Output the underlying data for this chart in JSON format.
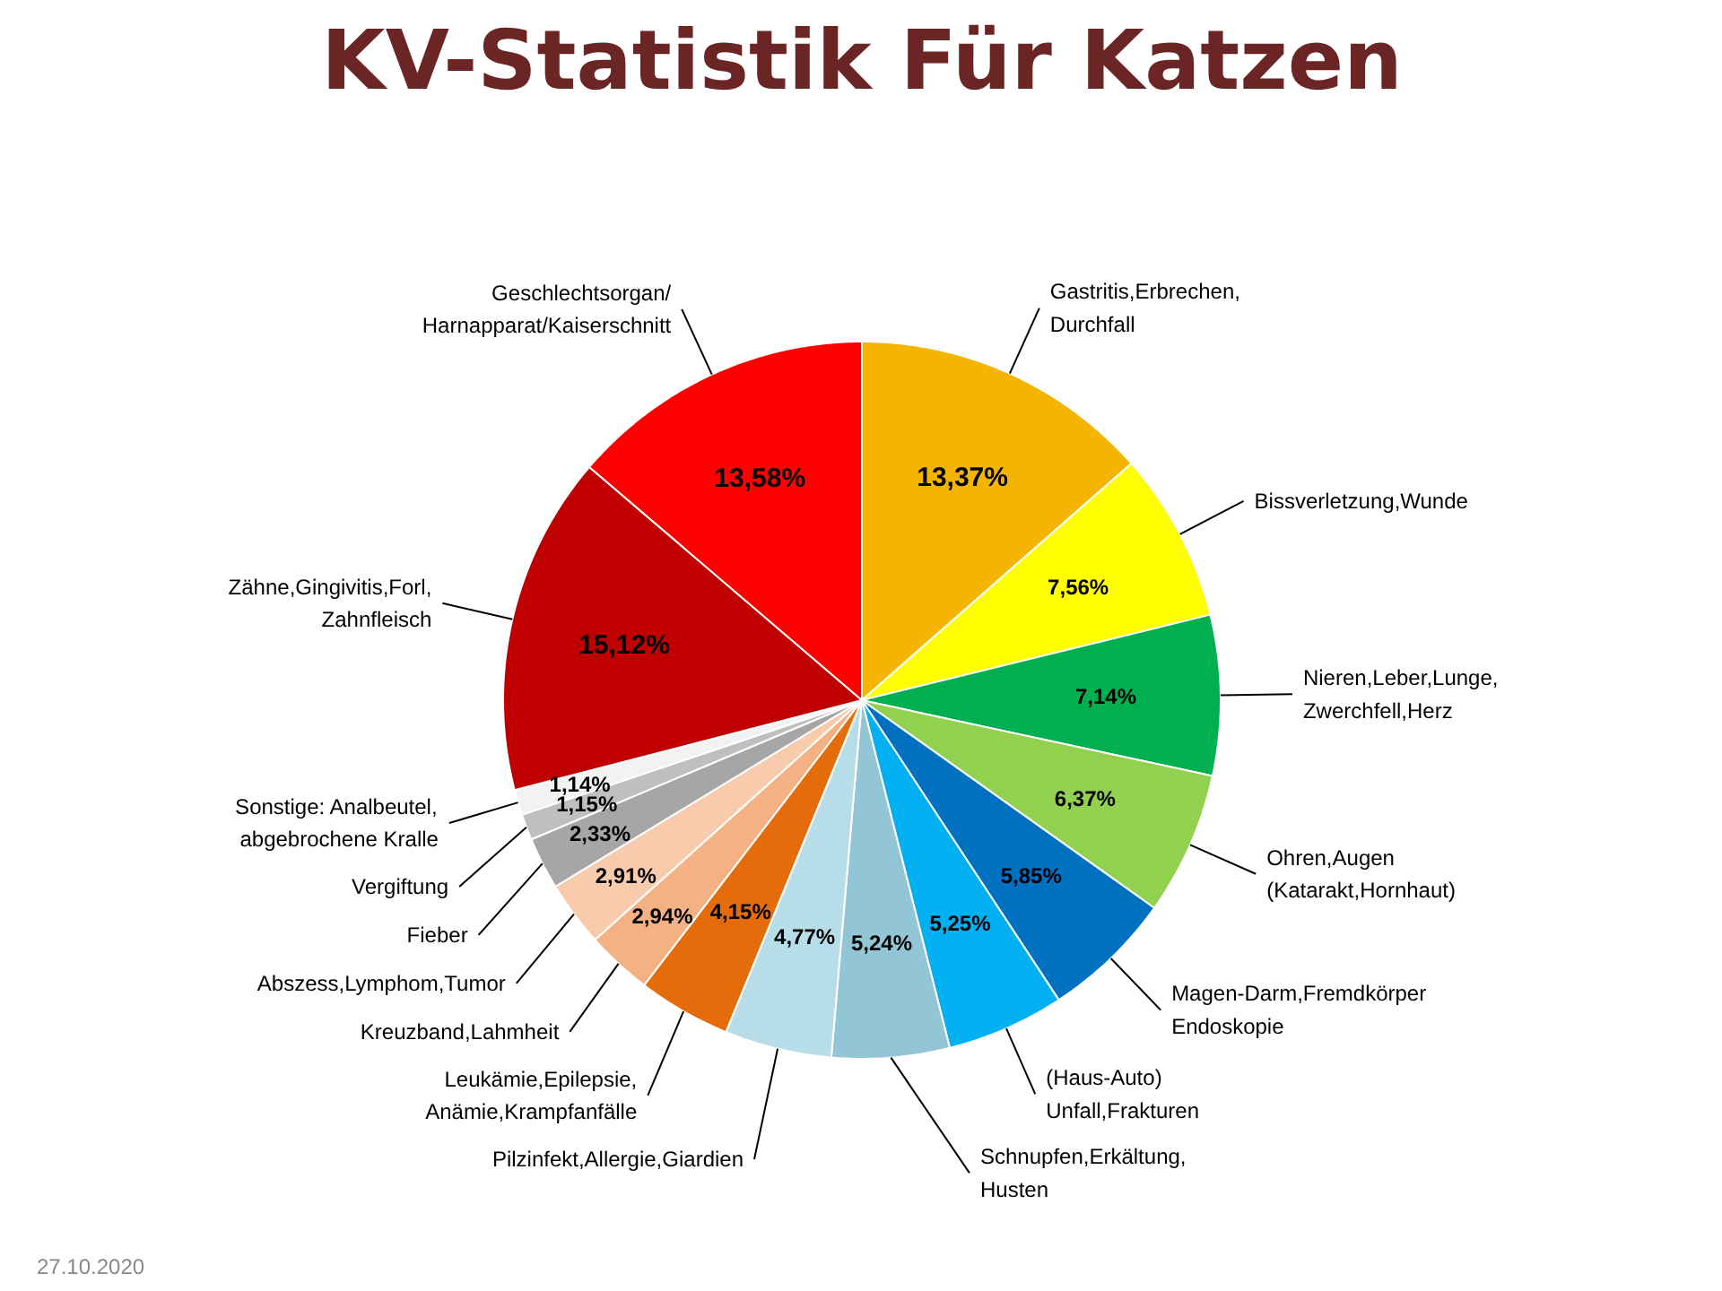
{
  "chart_data": {
    "type": "pie",
    "title": "KV-Statistik Für Katzen",
    "categories": [
      "Gastritis,Erbrechen,\nDurchfall",
      "Bissverletzung,Wunde",
      "Nieren,Leber,Lunge,\nZwerchfell,Herz",
      "Ohren,Augen\n(Katarakt,Hornhaut)",
      "Magen-Darm,Fremdkörper\nEndoskopie",
      "(Haus-Auto)\nUnfall,Frakturen",
      "Schnupfen,Erkältung,\nHusten",
      "Pilzinfekt,Allergie,Giardien",
      "Leukämie,Epilepsie,\nAnämie,Krampfanfälle",
      "Kreuzband,Lahmheit",
      "Abszess,Lymphom,Tumor",
      "Fieber",
      "Vergiftung",
      "Sonstige: Analbeutel,\nabgebrochene Kralle",
      "Zähne,Gingivitis,Forl,\nZahnfleisch",
      "Geschlechtsorgan/\nHarnapparat/Kaiserschnitt"
    ],
    "values": [
      13.37,
      7.56,
      7.14,
      6.37,
      5.85,
      5.25,
      5.24,
      4.77,
      4.15,
      2.94,
      2.91,
      2.33,
      1.15,
      1.14,
      15.12,
      13.58
    ],
    "value_labels": [
      "13,37%",
      "7,56%",
      "7,14%",
      "6,37%",
      "5,85%",
      "5,25%",
      "5,24%",
      "4,77%",
      "4,15%",
      "2,94%",
      "2,91%",
      "2,33%",
      "1,15%",
      "1,14%",
      "15,12%",
      "13,58%"
    ],
    "colors": [
      "#f5b400",
      "#ffff00",
      "#00b050",
      "#92d050",
      "#0070c0",
      "#00b0f0",
      "#92c5d6",
      "#b7dde8",
      "#e46c0a",
      "#f4b183",
      "#f8cbad",
      "#a6a6a6",
      "#bfbfbf",
      "#f2f2f2",
      "#c00000",
      "#ff0000"
    ],
    "annotations": [
      "27.10.2020"
    ]
  }
}
